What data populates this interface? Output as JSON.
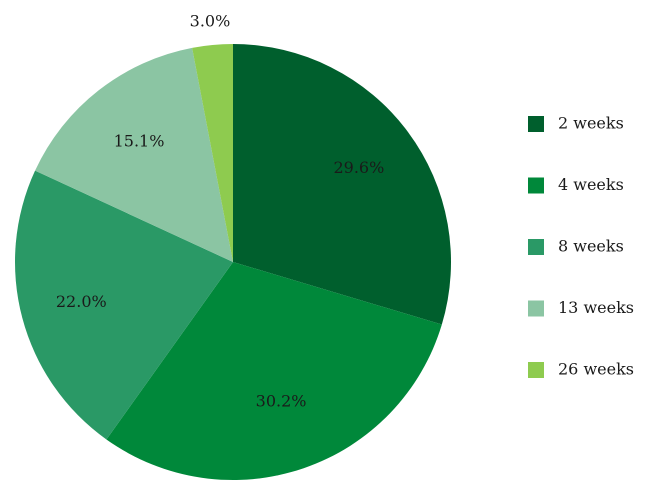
{
  "chart_data": {
    "type": "pie",
    "categories": [
      "2 weeks",
      "4 weeks",
      "8 weeks",
      "13 weeks",
      "26 weeks"
    ],
    "values": [
      29.6,
      30.2,
      22.0,
      15.1,
      3.0
    ],
    "labels": [
      "29.6%",
      "30.2%",
      "22.0%",
      "15.1%",
      "3.0%"
    ],
    "colors": [
      "#005f2d",
      "#00883a",
      "#2a9966",
      "#8bc5a3",
      "#8ecb4f"
    ],
    "start": "12 o'clock",
    "direction": "clockwise",
    "legend": "right"
  }
}
